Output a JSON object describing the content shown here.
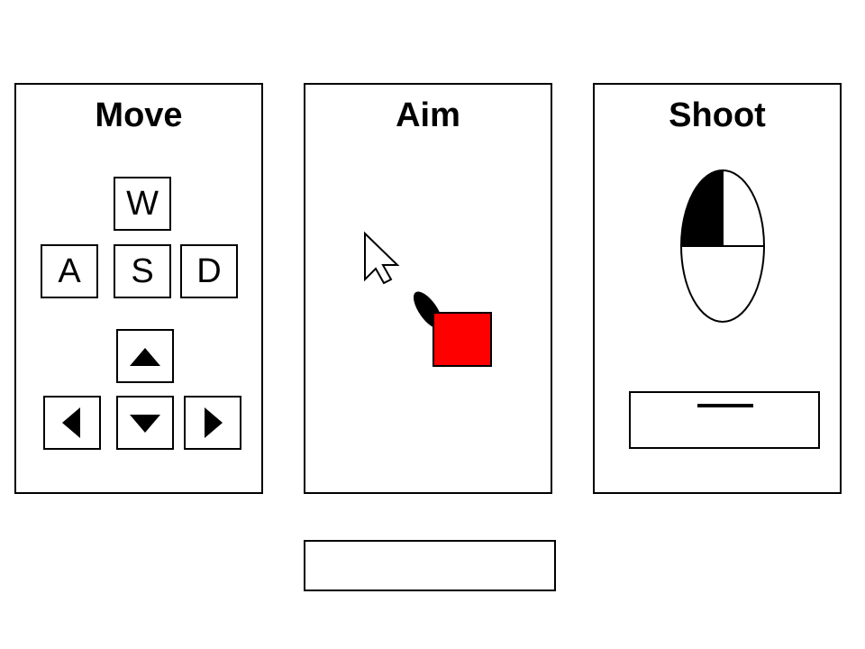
{
  "panels": {
    "move": {
      "title": "Move",
      "keys": {
        "w": "W",
        "a": "A",
        "s": "S",
        "d": "D"
      },
      "arrow_icons": [
        "arrow-up-icon",
        "arrow-left-icon",
        "arrow-down-icon",
        "arrow-right-icon"
      ]
    },
    "aim": {
      "title": "Aim",
      "icons": [
        "cursor-icon",
        "player-icon"
      ],
      "player_color": "#ff0000"
    },
    "shoot": {
      "title": "Shoot",
      "icons": [
        "mouse-icon",
        "spacebar-icon"
      ],
      "mouse_left_button_highlighted": true
    }
  },
  "bottom_bar": {
    "text": ""
  }
}
